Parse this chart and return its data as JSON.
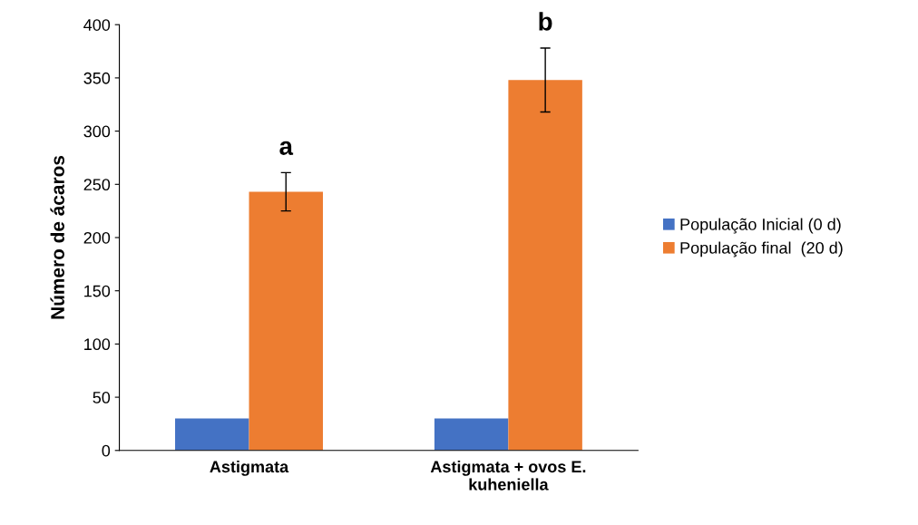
{
  "chart_data": {
    "type": "bar",
    "ylabel": "Número de ácaros",
    "categories": [
      "Astigmata",
      "Astigmata + ovos E.\nkuheniella"
    ],
    "series": [
      {
        "name": "População Inicial (0 d)",
        "color": "#4472c4",
        "values": [
          30,
          30
        ]
      },
      {
        "name": "População final  (20 d)",
        "color": "#ed7d31",
        "values": [
          243,
          348
        ],
        "errors": [
          18,
          30
        ]
      }
    ],
    "annotations": [
      "a",
      "b"
    ],
    "ylim": [
      0,
      400
    ],
    "yticks": [
      0,
      50,
      100,
      150,
      200,
      250,
      300,
      350,
      400
    ],
    "grid": false,
    "legend": "right"
  }
}
